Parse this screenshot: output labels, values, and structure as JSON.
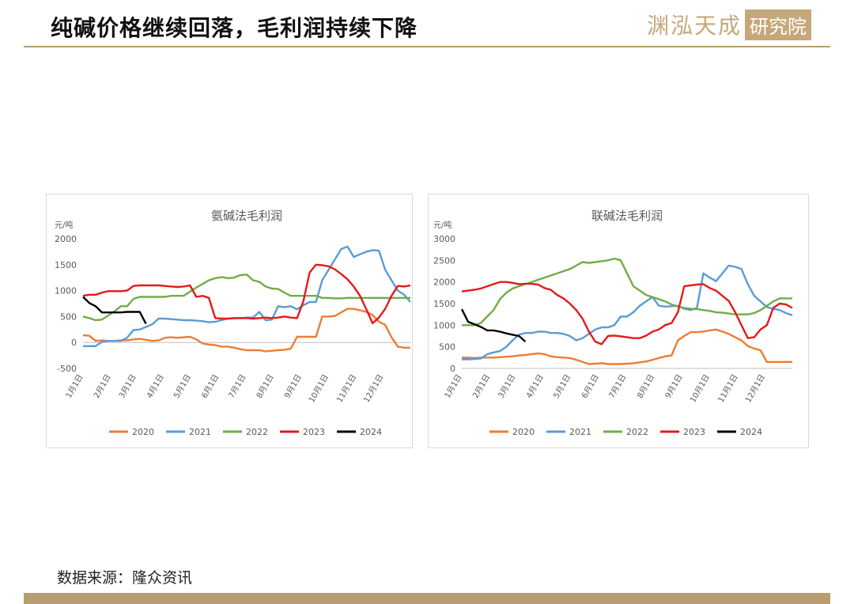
{
  "page": {
    "title": "纯碱价格继续回落，毛利润持续下降",
    "logo_text": "渊泓天成",
    "logo_box": "研究院",
    "source": "数据来源：隆众资讯",
    "accent_color": "#b89d70"
  },
  "chart_data": [
    {
      "type": "line",
      "title": "氨碱法毛利润",
      "ylabel": "元/吨",
      "ylim": [
        -500,
        2000
      ],
      "yticks": [
        -500,
        0,
        500,
        1000,
        1500,
        2000
      ],
      "xlim": [
        1,
        365
      ],
      "xticks": [
        {
          "label": "1月1日",
          "day": 1
        },
        {
          "label": "2月1日",
          "day": 32
        },
        {
          "label": "3月1日",
          "day": 60
        },
        {
          "label": "4月1日",
          "day": 91
        },
        {
          "label": "5月1日",
          "day": 121
        },
        {
          "label": "6月1日",
          "day": 152
        },
        {
          "label": "7月1日",
          "day": 182
        },
        {
          "label": "8月1日",
          "day": 213
        },
        {
          "label": "9月1日",
          "day": 244
        },
        {
          "label": "10月1日",
          "day": 274
        },
        {
          "label": "11月1日",
          "day": 305
        },
        {
          "label": "12月1日",
          "day": 335
        }
      ],
      "grid": false,
      "legend_position": "bottom",
      "series": [
        {
          "name": "2020",
          "color": "#ed7d31",
          "x": [
            1,
            8,
            15,
            22,
            29,
            36,
            43,
            50,
            57,
            64,
            71,
            78,
            85,
            92,
            99,
            106,
            113,
            120,
            127,
            134,
            141,
            148,
            155,
            162,
            169,
            176,
            183,
            190,
            197,
            204,
            211,
            218,
            225,
            232,
            239,
            246,
            253,
            260,
            267,
            274,
            281,
            288,
            295,
            302,
            309,
            316,
            323,
            330,
            337,
            344,
            351,
            358,
            365
          ],
          "y": [
            140,
            130,
            30,
            40,
            30,
            30,
            40,
            40,
            60,
            70,
            50,
            30,
            40,
            90,
            100,
            90,
            100,
            110,
            60,
            -20,
            -40,
            -50,
            -80,
            -80,
            -100,
            -130,
            -150,
            -150,
            -150,
            -170,
            -160,
            -150,
            -140,
            -120,
            110,
            110,
            110,
            110,
            500,
            500,
            510,
            580,
            650,
            650,
            620,
            590,
            530,
            400,
            340,
            100,
            -80,
            -100,
            -100
          ]
        },
        {
          "name": "2021",
          "color": "#5b9bd5",
          "x": [
            1,
            8,
            15,
            22,
            29,
            36,
            43,
            50,
            57,
            64,
            71,
            78,
            85,
            92,
            99,
            106,
            113,
            120,
            127,
            134,
            141,
            148,
            155,
            162,
            169,
            176,
            183,
            190,
            197,
            204,
            211,
            218,
            225,
            232,
            239,
            246,
            253,
            260,
            267,
            274,
            281,
            288,
            295,
            302,
            309,
            316,
            323,
            330,
            337,
            344,
            351,
            358,
            365
          ],
          "y": [
            -70,
            -70,
            -70,
            10,
            30,
            30,
            30,
            90,
            240,
            250,
            300,
            350,
            460,
            460,
            450,
            440,
            430,
            430,
            420,
            410,
            390,
            400,
            430,
            460,
            470,
            470,
            480,
            480,
            590,
            430,
            440,
            700,
            680,
            700,
            640,
            720,
            780,
            780,
            1200,
            1400,
            1600,
            1800,
            1850,
            1650,
            1700,
            1750,
            1780,
            1770,
            1400,
            1200,
            1000,
            920,
            780
          ]
        },
        {
          "name": "2022",
          "color": "#70ad47",
          "x": [
            1,
            8,
            15,
            22,
            29,
            36,
            43,
            50,
            57,
            64,
            71,
            78,
            85,
            92,
            99,
            106,
            113,
            120,
            127,
            134,
            141,
            148,
            155,
            162,
            169,
            176,
            183,
            190,
            197,
            204,
            211,
            218,
            225,
            232,
            239,
            246,
            253,
            260,
            267,
            274,
            281,
            288,
            295,
            302,
            309,
            316,
            323,
            330,
            337,
            344,
            351,
            358,
            365
          ],
          "y": [
            500,
            470,
            430,
            440,
            520,
            600,
            700,
            700,
            840,
            880,
            880,
            880,
            880,
            880,
            900,
            900,
            900,
            980,
            1060,
            1130,
            1200,
            1240,
            1260,
            1240,
            1250,
            1300,
            1310,
            1200,
            1170,
            1080,
            1040,
            1030,
            960,
            900,
            900,
            900,
            900,
            900,
            860,
            860,
            850,
            850,
            860,
            860,
            860,
            860,
            860,
            860,
            860,
            860,
            860,
            860,
            860
          ]
        },
        {
          "name": "2023",
          "color": "#e31a1c",
          "x": [
            1,
            8,
            15,
            22,
            29,
            36,
            43,
            50,
            57,
            64,
            71,
            78,
            85,
            92,
            99,
            106,
            113,
            120,
            127,
            134,
            141,
            148,
            155,
            162,
            169,
            176,
            183,
            190,
            197,
            204,
            211,
            218,
            225,
            232,
            239,
            246,
            253,
            260,
            267,
            274,
            281,
            288,
            295,
            302,
            309,
            316,
            323,
            330,
            337,
            344,
            351,
            358,
            365
          ],
          "y": [
            900,
            920,
            920,
            960,
            990,
            990,
            990,
            1000,
            1090,
            1100,
            1100,
            1100,
            1100,
            1090,
            1080,
            1070,
            1080,
            1100,
            880,
            900,
            860,
            470,
            460,
            460,
            470,
            470,
            470,
            460,
            470,
            480,
            470,
            480,
            500,
            480,
            470,
            800,
            1350,
            1500,
            1490,
            1470,
            1410,
            1320,
            1220,
            1080,
            900,
            640,
            370,
            480,
            650,
            900,
            1090,
            1080,
            1100
          ]
        },
        {
          "name": "2024",
          "color": "#000000",
          "x": [
            1,
            8,
            15,
            22,
            29,
            36,
            43,
            50,
            57,
            64,
            71
          ],
          "y": [
            880,
            760,
            700,
            580,
            580,
            580,
            580,
            590,
            590,
            590,
            360
          ]
        }
      ]
    },
    {
      "type": "line",
      "title": "联碱法毛利润",
      "ylabel": "元/吨",
      "ylim": [
        0,
        3000
      ],
      "yticks": [
        0,
        500,
        1000,
        1500,
        2000,
        2500,
        3000
      ],
      "xlim": [
        1,
        365
      ],
      "xticks": [
        {
          "label": "1月1日",
          "day": 1
        },
        {
          "label": "2月1日",
          "day": 32
        },
        {
          "label": "3月1日",
          "day": 60
        },
        {
          "label": "4月1日",
          "day": 91
        },
        {
          "label": "5月1日",
          "day": 121
        },
        {
          "label": "6月1日",
          "day": 152
        },
        {
          "label": "7月1日",
          "day": 182
        },
        {
          "label": "8月1日",
          "day": 213
        },
        {
          "label": "9月1日",
          "day": 244
        },
        {
          "label": "10月1日",
          "day": 274
        },
        {
          "label": "11月1日",
          "day": 305
        },
        {
          "label": "12月1日",
          "day": 335
        }
      ],
      "grid": false,
      "legend_position": "bottom",
      "series": [
        {
          "name": "2020",
          "color": "#ed7d31",
          "x": [
            1,
            8,
            15,
            22,
            29,
            36,
            43,
            50,
            57,
            64,
            71,
            78,
            85,
            92,
            99,
            106,
            113,
            120,
            127,
            134,
            141,
            148,
            155,
            162,
            169,
            176,
            183,
            190,
            197,
            204,
            211,
            218,
            225,
            232,
            239,
            246,
            253,
            260,
            267,
            274,
            281,
            288,
            295,
            302,
            309,
            316,
            323,
            330,
            337,
            344,
            351,
            358,
            365
          ],
          "y": [
            250,
            250,
            240,
            250,
            250,
            250,
            260,
            270,
            280,
            300,
            310,
            330,
            350,
            330,
            280,
            260,
            250,
            240,
            200,
            150,
            100,
            110,
            120,
            100,
            100,
            100,
            110,
            120,
            140,
            160,
            200,
            240,
            280,
            300,
            650,
            750,
            840,
            840,
            850,
            880,
            900,
            850,
            800,
            720,
            650,
            520,
            460,
            420,
            150,
            150,
            150,
            150,
            150
          ]
        },
        {
          "name": "2021",
          "color": "#5b9bd5",
          "x": [
            1,
            8,
            15,
            22,
            29,
            36,
            43,
            50,
            57,
            64,
            71,
            78,
            85,
            92,
            99,
            106,
            113,
            120,
            127,
            134,
            141,
            148,
            155,
            162,
            169,
            176,
            183,
            190,
            197,
            204,
            211,
            218,
            225,
            232,
            239,
            246,
            253,
            260,
            267,
            274,
            281,
            288,
            295,
            302,
            309,
            316,
            323,
            330,
            337,
            344,
            351,
            358,
            365
          ],
          "y": [
            210,
            210,
            220,
            230,
            330,
            370,
            400,
            500,
            650,
            780,
            820,
            820,
            850,
            850,
            820,
            820,
            800,
            750,
            650,
            700,
            800,
            900,
            950,
            950,
            1000,
            1200,
            1200,
            1300,
            1450,
            1550,
            1650,
            1450,
            1430,
            1440,
            1450,
            1380,
            1350,
            1400,
            2200,
            2100,
            2020,
            2200,
            2380,
            2350,
            2300,
            1950,
            1680,
            1550,
            1420,
            1380,
            1350,
            1280,
            1230
          ]
        },
        {
          "name": "2022",
          "color": "#70ad47",
          "x": [
            1,
            8,
            15,
            22,
            29,
            36,
            43,
            50,
            57,
            64,
            71,
            78,
            85,
            92,
            99,
            106,
            113,
            120,
            127,
            134,
            141,
            148,
            155,
            162,
            169,
            176,
            183,
            190,
            197,
            204,
            211,
            218,
            225,
            232,
            239,
            246,
            253,
            260,
            267,
            274,
            281,
            288,
            295,
            302,
            309,
            316,
            323,
            330,
            337,
            344,
            351,
            358,
            365
          ],
          "y": [
            1000,
            1000,
            1000,
            1050,
            1200,
            1350,
            1600,
            1750,
            1850,
            1900,
            1950,
            2000,
            2050,
            2100,
            2150,
            2200,
            2250,
            2300,
            2380,
            2460,
            2440,
            2460,
            2480,
            2500,
            2540,
            2500,
            2200,
            1900,
            1800,
            1700,
            1650,
            1600,
            1550,
            1480,
            1430,
            1400,
            1380,
            1370,
            1350,
            1330,
            1300,
            1290,
            1270,
            1250,
            1250,
            1250,
            1280,
            1350,
            1450,
            1550,
            1620,
            1620,
            1620
          ]
        },
        {
          "name": "2023",
          "color": "#e31a1c",
          "x": [
            1,
            8,
            15,
            22,
            29,
            36,
            43,
            50,
            57,
            64,
            71,
            78,
            85,
            92,
            99,
            106,
            113,
            120,
            127,
            134,
            141,
            148,
            155,
            162,
            169,
            176,
            183,
            190,
            197,
            204,
            211,
            218,
            225,
            232,
            239,
            246,
            253,
            260,
            267,
            274,
            281,
            288,
            295,
            302,
            309,
            316,
            323,
            330,
            337,
            344,
            351,
            358,
            365
          ],
          "y": [
            1780,
            1800,
            1820,
            1850,
            1900,
            1950,
            2000,
            2000,
            1980,
            1950,
            1960,
            1960,
            1940,
            1860,
            1820,
            1700,
            1620,
            1500,
            1350,
            1150,
            850,
            620,
            560,
            750,
            760,
            740,
            720,
            700,
            700,
            760,
            850,
            900,
            1000,
            1050,
            1300,
            1900,
            1920,
            1940,
            1950,
            1860,
            1800,
            1680,
            1560,
            1300,
            1000,
            700,
            720,
            900,
            1000,
            1400,
            1500,
            1480,
            1400
          ]
        },
        {
          "name": "2024",
          "color": "#000000",
          "x": [
            1,
            8,
            15,
            22,
            29,
            36,
            43,
            50,
            57,
            64,
            71
          ],
          "y": [
            1370,
            1080,
            1020,
            960,
            880,
            880,
            850,
            810,
            780,
            750,
            620
          ]
        }
      ]
    }
  ]
}
